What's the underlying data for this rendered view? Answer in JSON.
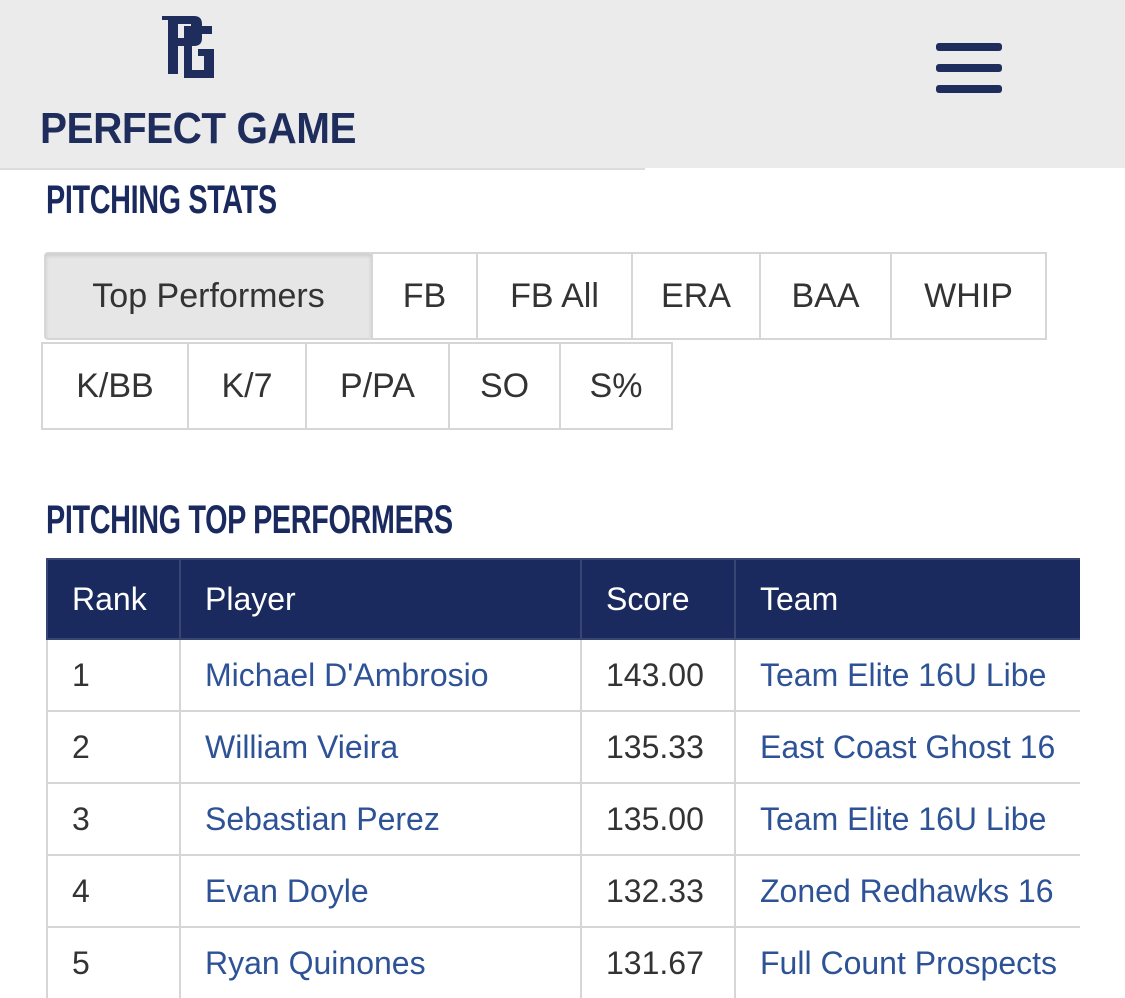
{
  "header": {
    "brand": "PERFECT GAME"
  },
  "stats_section": {
    "title": "PITCHING STATS",
    "tabs": [
      [
        "Top Performers",
        "FB",
        "FB All",
        "ERA",
        "BAA",
        "WHIP"
      ],
      [
        "K/BB",
        "K/7",
        "P/PA",
        "SO",
        "S%"
      ]
    ]
  },
  "table_section": {
    "title": "PITCHING TOP PERFORMERS",
    "table": {
      "columns": [
        "Rank",
        "Player",
        "Score",
        "Team"
      ],
      "rows": [
        [
          "1",
          "Michael D'Ambrosio",
          "143.00",
          "Team Elite 16U Libe"
        ],
        [
          "2",
          "William Vieira",
          "135.33",
          "East Coast Ghost 16"
        ],
        [
          "3",
          "Sebastian Perez",
          "135.00",
          "Team Elite 16U Libe"
        ],
        [
          "4",
          "Evan Doyle",
          "132.33",
          "Zoned Redhawks 16"
        ],
        [
          "5",
          "Ryan Quinones",
          "131.67",
          "Full Count Prospects"
        ]
      ]
    }
  }
}
